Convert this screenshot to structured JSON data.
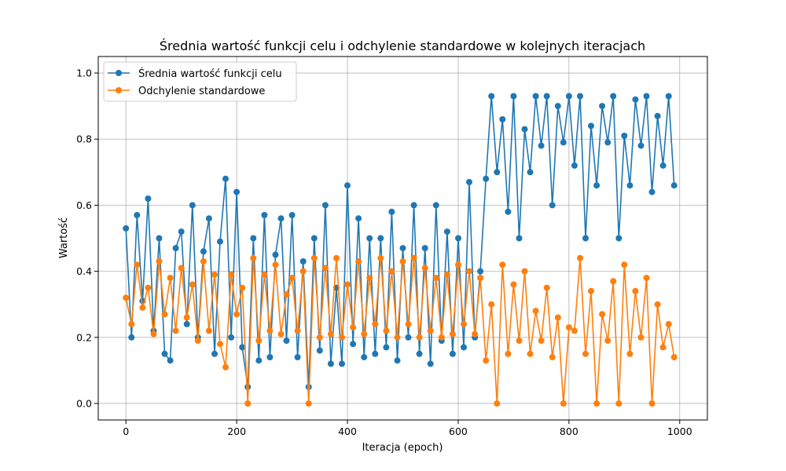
{
  "chart_data": {
    "type": "line",
    "title": "Średnia wartość funkcji celu i odchylenie standardowe w kolejnych iteracjach",
    "xlabel": "Iteracja (epoch)",
    "ylabel": "Wartość",
    "xlim": [
      -50,
      1050
    ],
    "ylim": [
      -0.05,
      1.05
    ],
    "xticks": [
      0,
      200,
      400,
      600,
      800,
      1000
    ],
    "yticks": [
      0.0,
      0.2,
      0.4,
      0.6,
      0.8,
      1.0
    ],
    "xtick_labels": [
      "0",
      "200",
      "400",
      "600",
      "800",
      "1000"
    ],
    "ytick_labels": [
      "0.0",
      "0.2",
      "0.4",
      "0.6",
      "0.8",
      "1.0"
    ],
    "grid": true,
    "legend_position": "top-left",
    "series": [
      {
        "name": "Średnia wartość funkcji celu",
        "color": "#1f77b4",
        "marker": "circle",
        "x_start": 0,
        "x_step": 10,
        "values": [
          0.53,
          0.2,
          0.57,
          0.31,
          0.62,
          0.22,
          0.5,
          0.15,
          0.13,
          0.47,
          0.52,
          0.24,
          0.6,
          0.2,
          0.46,
          0.56,
          0.15,
          0.49,
          0.68,
          0.2,
          0.64,
          0.17,
          0.05,
          0.5,
          0.13,
          0.57,
          0.14,
          0.45,
          0.56,
          0.19,
          0.57,
          0.14,
          0.43,
          0.05,
          0.5,
          0.16,
          0.6,
          0.12,
          0.35,
          0.12,
          0.66,
          0.18,
          0.56,
          0.14,
          0.5,
          0.15,
          0.5,
          0.17,
          0.58,
          0.13,
          0.47,
          0.2,
          0.6,
          0.15,
          0.47,
          0.12,
          0.6,
          0.19,
          0.52,
          0.15,
          0.5,
          0.17,
          0.67,
          0.2,
          0.4,
          0.68,
          0.93,
          0.7,
          0.86,
          0.58,
          0.93,
          0.5,
          0.83,
          0.7,
          0.93,
          0.78,
          0.93,
          0.6,
          0.9,
          0.79,
          0.93,
          0.72,
          0.93,
          0.5,
          0.84,
          0.66,
          0.9,
          0.79,
          0.93,
          0.5,
          0.81,
          0.66,
          0.92,
          0.78,
          0.93,
          0.64,
          0.87,
          0.72,
          0.93,
          0.66
        ]
      },
      {
        "name": "Odchylenie standardowe",
        "color": "#ff7f0e",
        "marker": "circle",
        "x_start": 0,
        "x_step": 10,
        "values": [
          0.32,
          0.24,
          0.42,
          0.29,
          0.35,
          0.21,
          0.43,
          0.27,
          0.38,
          0.22,
          0.41,
          0.26,
          0.36,
          0.19,
          0.43,
          0.22,
          0.39,
          0.18,
          0.11,
          0.39,
          0.27,
          0.35,
          0.0,
          0.44,
          0.19,
          0.39,
          0.22,
          0.42,
          0.21,
          0.33,
          0.38,
          0.22,
          0.4,
          0.0,
          0.44,
          0.2,
          0.41,
          0.21,
          0.44,
          0.2,
          0.36,
          0.23,
          0.43,
          0.21,
          0.38,
          0.24,
          0.44,
          0.22,
          0.4,
          0.2,
          0.43,
          0.24,
          0.44,
          0.2,
          0.41,
          0.22,
          0.38,
          0.2,
          0.39,
          0.21,
          0.42,
          0.24,
          0.4,
          0.21,
          0.38,
          0.13,
          0.3,
          0.0,
          0.42,
          0.15,
          0.36,
          0.19,
          0.4,
          0.15,
          0.28,
          0.19,
          0.35,
          0.14,
          0.26,
          0.0,
          0.23,
          0.22,
          0.44,
          0.15,
          0.34,
          0.0,
          0.27,
          0.19,
          0.37,
          0.0,
          0.42,
          0.15,
          0.34,
          0.2,
          0.38,
          0.0,
          0.3,
          0.17,
          0.24,
          0.14
        ]
      }
    ]
  }
}
